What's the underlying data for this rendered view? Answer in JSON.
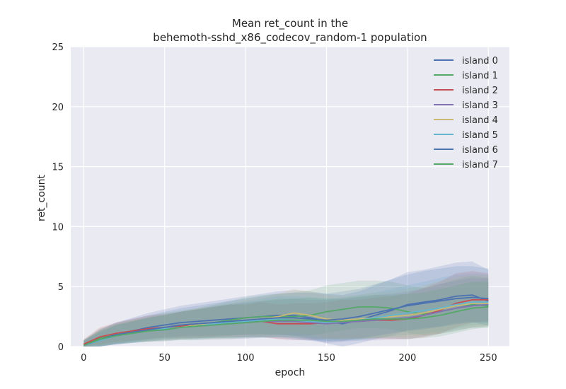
{
  "chart_data": {
    "type": "line",
    "title_line1": "Mean ret_count in the",
    "title_line2": "behemoth-sshd_x86_codecov_random-1 population",
    "xlabel": "epoch",
    "ylabel": "ret_count",
    "xlim": [
      -8,
      263
    ],
    "ylim": [
      0,
      25
    ],
    "xticks": [
      0,
      50,
      100,
      150,
      200,
      250
    ],
    "yticks": [
      0,
      5,
      10,
      15,
      20,
      25
    ],
    "grid": true,
    "legend_position": "top-right",
    "x": [
      0,
      10,
      20,
      30,
      40,
      50,
      60,
      70,
      80,
      90,
      100,
      110,
      120,
      130,
      140,
      150,
      160,
      170,
      180,
      190,
      200,
      210,
      220,
      230,
      240,
      250
    ],
    "series": [
      {
        "name": "island 0",
        "color": "#4c72b0",
        "values": [
          0.1,
          0.6,
          1.0,
          1.3,
          1.6,
          1.8,
          2.0,
          2.1,
          2.2,
          2.3,
          2.4,
          2.5,
          2.6,
          2.6,
          2.4,
          2.1,
          1.9,
          2.2,
          2.6,
          3.0,
          3.5,
          3.7,
          3.9,
          4.2,
          4.3,
          3.8
        ],
        "band": [
          0.4,
          0.8,
          1.0,
          1.1,
          1.2,
          1.3,
          1.4,
          1.5,
          1.6,
          1.7,
          1.8,
          1.9,
          2.0,
          2.1,
          2.2,
          2.3,
          2.4,
          2.4,
          2.5,
          2.6,
          2.7,
          2.7,
          2.8,
          2.8,
          2.8,
          2.6
        ]
      },
      {
        "name": "island 1",
        "color": "#55a868",
        "values": [
          0.2,
          0.7,
          1.0,
          1.2,
          1.4,
          1.6,
          1.7,
          1.8,
          2.0,
          2.2,
          2.4,
          2.5,
          2.5,
          2.5,
          2.6,
          2.9,
          3.1,
          3.3,
          3.3,
          3.2,
          2.9,
          2.7,
          2.9,
          3.2,
          3.5,
          3.4
        ],
        "band": [
          0.4,
          0.8,
          0.9,
          1.0,
          1.1,
          1.2,
          1.3,
          1.4,
          1.5,
          1.6,
          1.7,
          1.8,
          1.9,
          2.0,
          2.1,
          2.2,
          2.2,
          2.2,
          2.2,
          2.2,
          2.2,
          2.2,
          2.3,
          2.4,
          2.4,
          2.3
        ]
      },
      {
        "name": "island 2",
        "color": "#c44e52",
        "values": [
          0.2,
          0.8,
          1.1,
          1.3,
          1.5,
          1.6,
          1.7,
          1.8,
          1.9,
          2.0,
          2.0,
          2.1,
          1.9,
          1.9,
          1.9,
          2.0,
          2.1,
          2.1,
          2.2,
          2.2,
          2.3,
          2.6,
          3.0,
          3.6,
          3.9,
          3.9
        ],
        "band": [
          0.4,
          0.8,
          0.9,
          1.0,
          1.1,
          1.1,
          1.2,
          1.3,
          1.4,
          1.5,
          1.5,
          1.6,
          1.6,
          1.7,
          1.7,
          1.7,
          1.8,
          1.8,
          1.9,
          2.0,
          2.1,
          2.3,
          2.4,
          2.5,
          2.4,
          2.2
        ]
      },
      {
        "name": "island 3",
        "color": "#8172b2",
        "values": [
          0.1,
          0.5,
          0.9,
          1.1,
          1.3,
          1.4,
          1.6,
          1.7,
          1.8,
          1.9,
          2.0,
          2.1,
          2.1,
          2.1,
          2.0,
          1.9,
          2.0,
          2.1,
          2.2,
          2.3,
          2.4,
          2.6,
          2.9,
          3.2,
          3.4,
          3.5
        ],
        "band": [
          0.4,
          0.7,
          0.9,
          1.0,
          1.1,
          1.2,
          1.3,
          1.4,
          1.5,
          1.6,
          1.7,
          1.7,
          1.8,
          1.9,
          1.9,
          2.0,
          2.0,
          2.0,
          2.1,
          2.1,
          2.2,
          2.2,
          2.3,
          2.3,
          2.3,
          2.2
        ]
      },
      {
        "name": "island 4",
        "color": "#ccb974",
        "values": [
          0.1,
          0.6,
          1.0,
          1.2,
          1.3,
          1.5,
          1.6,
          1.8,
          1.9,
          2.0,
          2.2,
          2.3,
          2.5,
          2.8,
          2.6,
          2.3,
          2.2,
          2.3,
          2.4,
          2.5,
          2.6,
          2.8,
          3.1,
          3.4,
          3.6,
          3.6
        ],
        "band": [
          0.4,
          0.7,
          0.9,
          1.0,
          1.1,
          1.2,
          1.3,
          1.4,
          1.5,
          1.6,
          1.7,
          1.8,
          1.9,
          2.0,
          2.0,
          2.0,
          2.0,
          2.0,
          2.1,
          2.1,
          2.2,
          2.3,
          2.4,
          2.4,
          2.4,
          2.3
        ]
      },
      {
        "name": "island 5",
        "color": "#64b5cd",
        "values": [
          0.1,
          0.5,
          0.9,
          1.1,
          1.3,
          1.5,
          1.6,
          1.7,
          1.9,
          2.0,
          2.1,
          2.2,
          2.3,
          2.2,
          2.1,
          2.0,
          2.1,
          2.2,
          2.4,
          2.6,
          2.8,
          3.0,
          3.2,
          3.5,
          3.7,
          3.7
        ],
        "band": [
          0.4,
          0.7,
          0.9,
          1.0,
          1.1,
          1.2,
          1.3,
          1.4,
          1.5,
          1.6,
          1.7,
          1.8,
          1.9,
          2.0,
          2.0,
          2.0,
          2.0,
          2.1,
          2.1,
          2.2,
          2.3,
          2.4,
          2.5,
          2.5,
          2.4,
          2.3
        ]
      },
      {
        "name": "island 6",
        "color": "#4c72b0",
        "values": [
          0.1,
          0.6,
          1.0,
          1.2,
          1.4,
          1.6,
          1.8,
          1.9,
          2.0,
          2.1,
          2.2,
          2.3,
          2.4,
          2.4,
          2.3,
          2.2,
          2.3,
          2.5,
          2.8,
          3.1,
          3.4,
          3.6,
          3.8,
          4.0,
          4.1,
          4.0
        ],
        "band": [
          0.4,
          0.8,
          1.0,
          1.1,
          1.2,
          1.3,
          1.4,
          1.5,
          1.6,
          1.7,
          1.8,
          1.9,
          2.0,
          2.1,
          2.2,
          2.2,
          2.3,
          2.3,
          2.4,
          2.5,
          2.6,
          2.7,
          2.7,
          2.7,
          2.6,
          2.5
        ]
      },
      {
        "name": "island 7",
        "color": "#55a868",
        "values": [
          0.1,
          0.6,
          0.9,
          1.1,
          1.3,
          1.4,
          1.6,
          1.7,
          1.8,
          1.9,
          2.0,
          2.1,
          2.2,
          2.2,
          2.2,
          2.1,
          2.1,
          2.2,
          2.3,
          2.3,
          2.3,
          2.4,
          2.6,
          2.9,
          3.2,
          3.3
        ],
        "band": [
          0.4,
          0.7,
          0.9,
          1.0,
          1.1,
          1.2,
          1.3,
          1.4,
          1.5,
          1.6,
          1.6,
          1.7,
          1.8,
          1.8,
          1.9,
          1.9,
          1.9,
          2.0,
          2.0,
          2.0,
          2.1,
          2.1,
          2.2,
          2.2,
          2.2,
          2.1
        ]
      }
    ]
  }
}
